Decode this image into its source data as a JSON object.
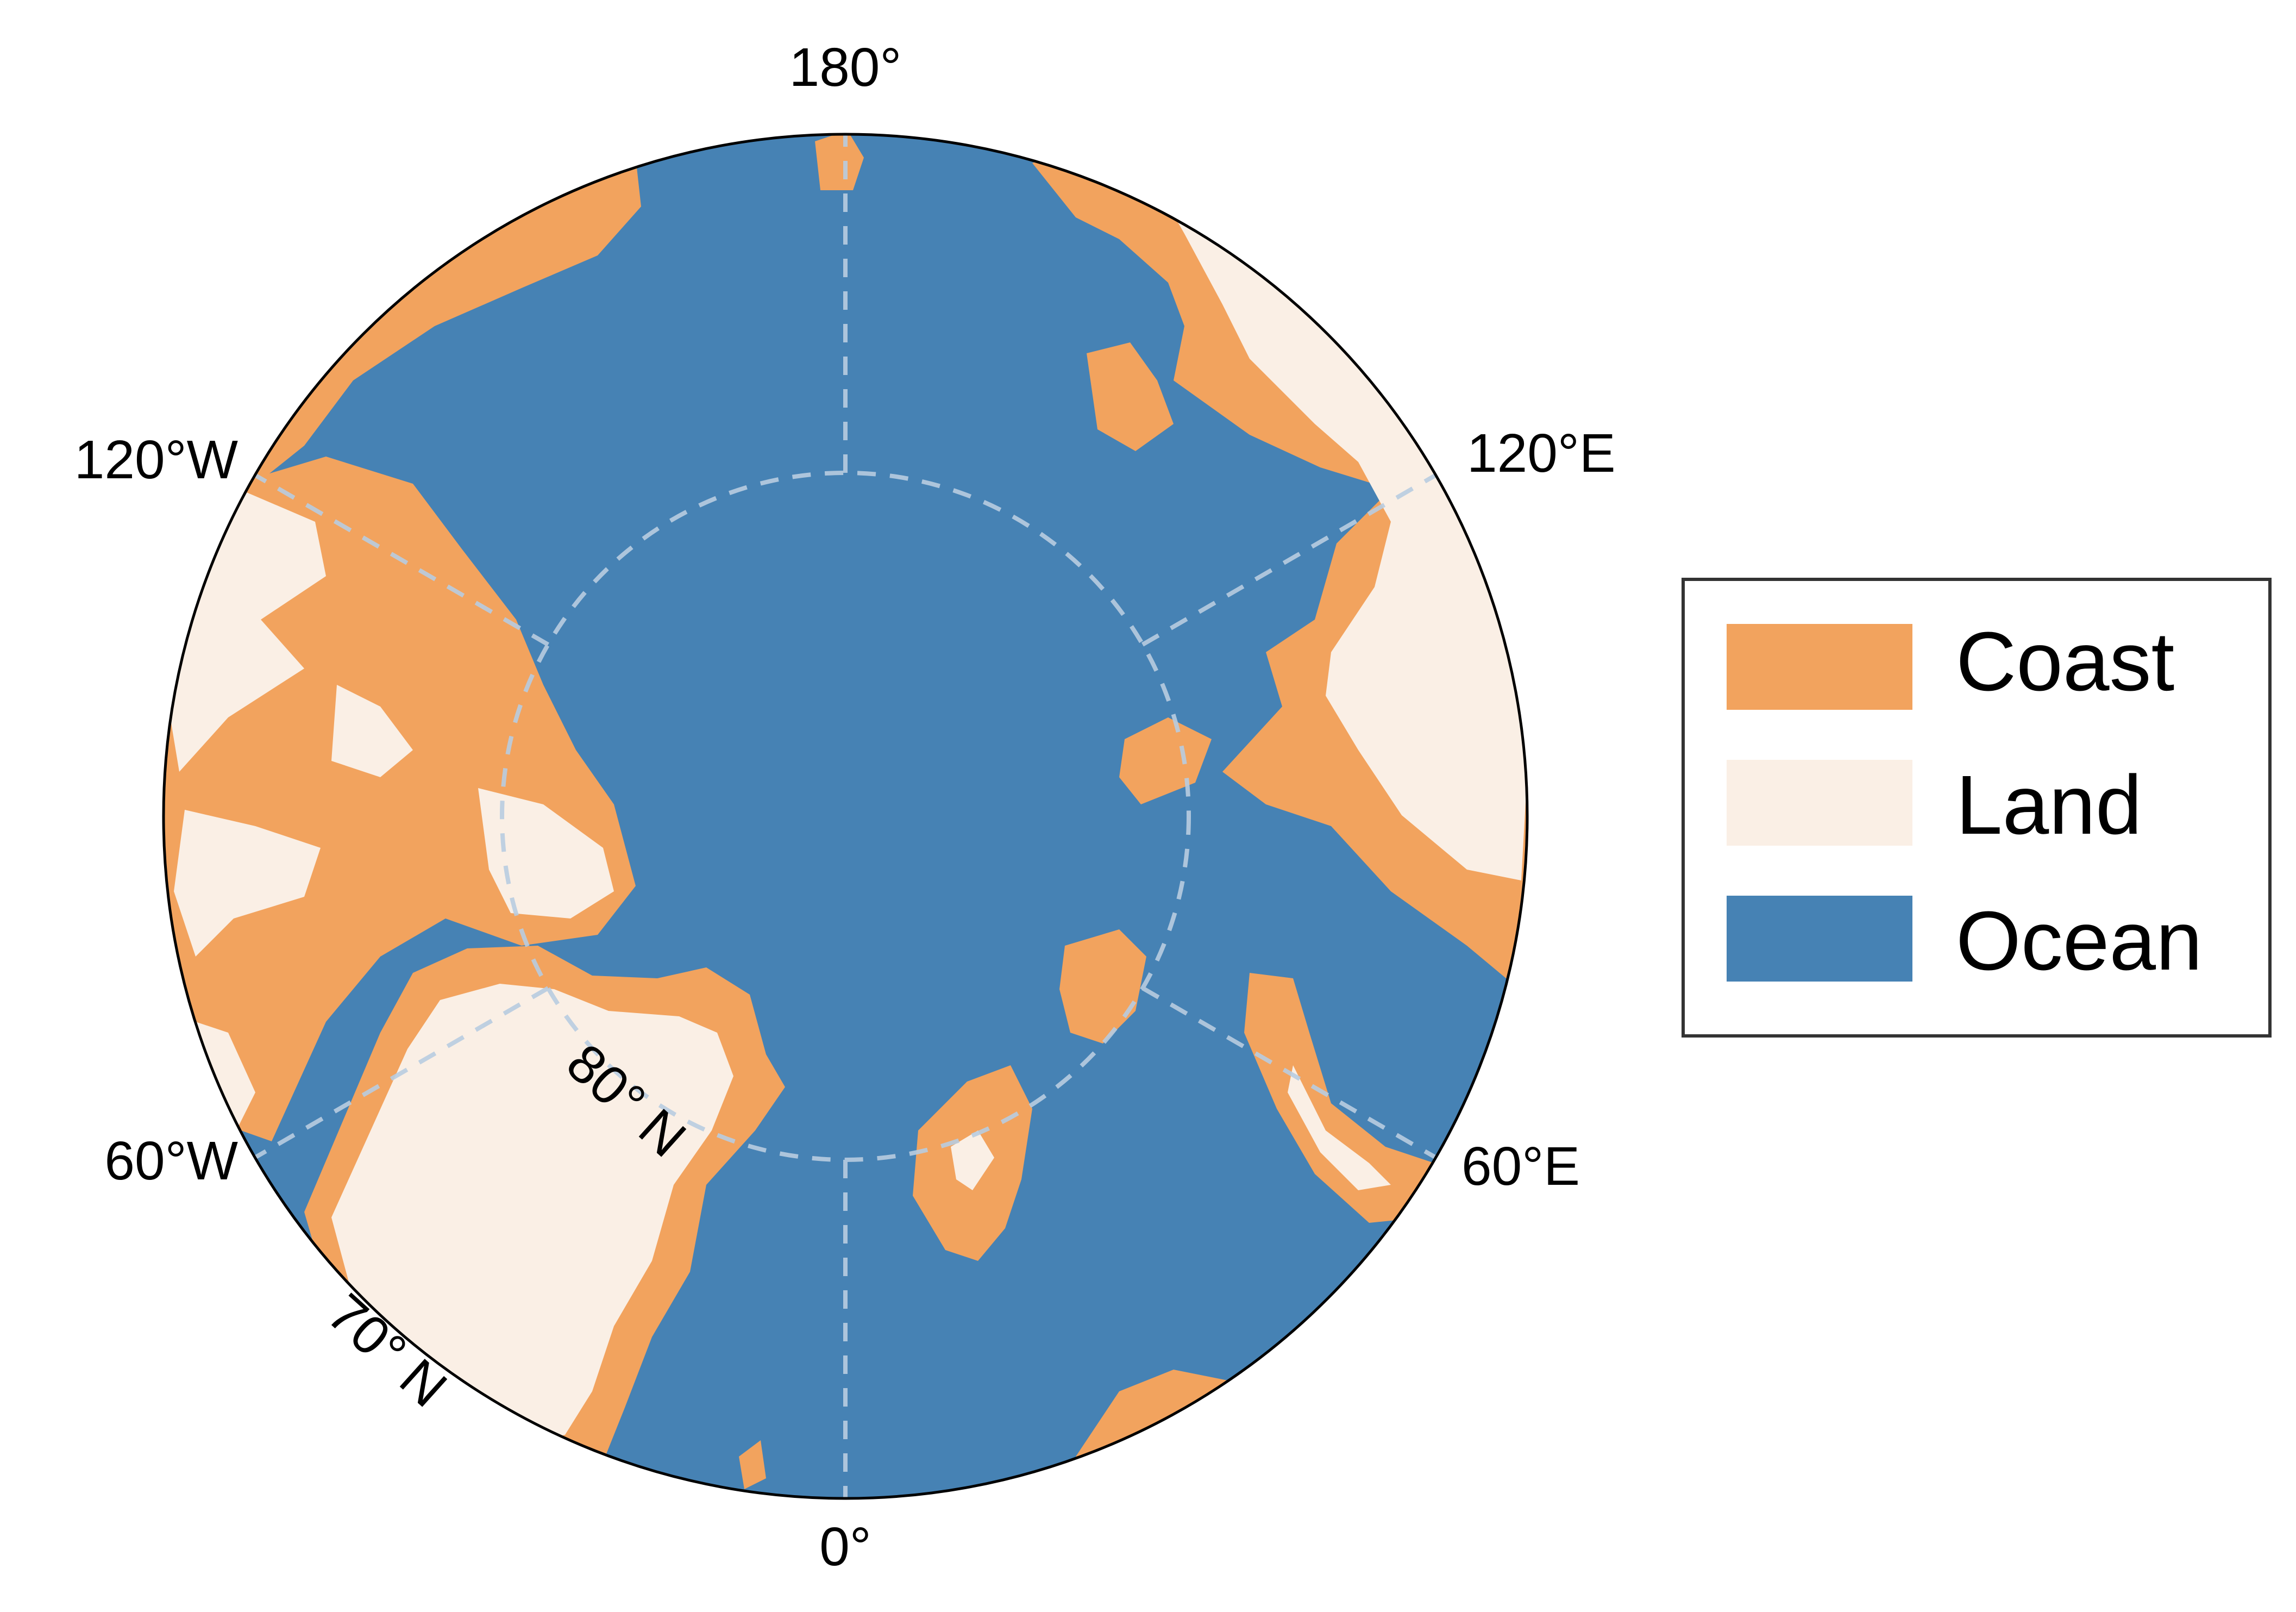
{
  "map": {
    "projection": "north polar stereographic",
    "colors": {
      "ocean": "#4682B4",
      "land": "#FAEFE5",
      "coast": "#F2A35E",
      "gridline": "#B8CCE0",
      "frame": "#000000"
    },
    "longitude_labels": {
      "top": "180°",
      "upper_right": "120°E",
      "lower_right": "60°E",
      "bottom": "0°",
      "lower_left": "60°W",
      "upper_left": "120°W"
    },
    "latitude_labels": {
      "inner": "80° N",
      "outer": "70° N"
    }
  },
  "legend": {
    "items": [
      {
        "label": "Coast",
        "color": "#F2A35E"
      },
      {
        "label": "Land",
        "color": "#FAEFE5"
      },
      {
        "label": "Ocean",
        "color": "#4682B4"
      }
    ]
  }
}
